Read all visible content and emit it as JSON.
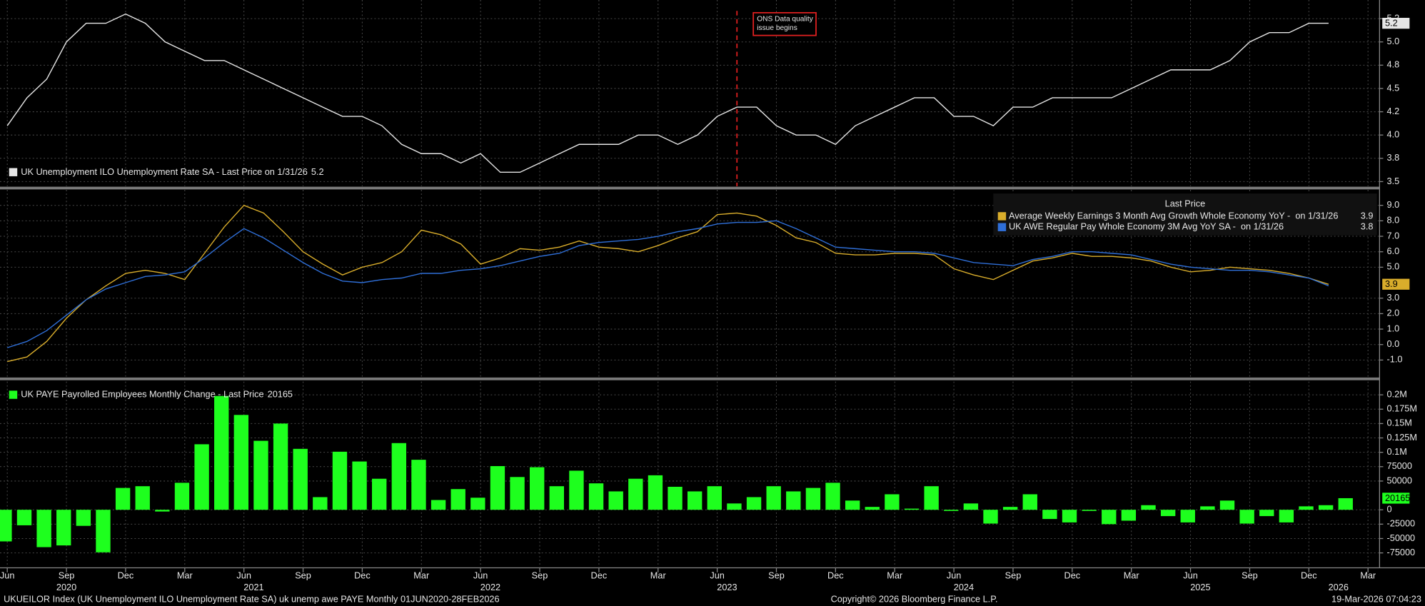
{
  "chart_data": [
    {
      "type": "line",
      "x": [
        "2020-06",
        "2020-07",
        "2020-08",
        "2020-09",
        "2020-10",
        "2020-11",
        "2020-12",
        "2021-01",
        "2021-02",
        "2021-03",
        "2021-04",
        "2021-05",
        "2021-06",
        "2021-07",
        "2021-08",
        "2021-09",
        "2021-10",
        "2021-11",
        "2021-12",
        "2022-01",
        "2022-02",
        "2022-03",
        "2022-04",
        "2022-05",
        "2022-06",
        "2022-07",
        "2022-08",
        "2022-09",
        "2022-10",
        "2022-11",
        "2022-12",
        "2023-01",
        "2023-02",
        "2023-03",
        "2023-04",
        "2023-05",
        "2023-06",
        "2023-07",
        "2023-08",
        "2023-09",
        "2023-10",
        "2023-11",
        "2023-12",
        "2024-01",
        "2024-02",
        "2024-03",
        "2024-04",
        "2024-05",
        "2024-06",
        "2024-07",
        "2024-08",
        "2024-09",
        "2024-10",
        "2024-11",
        "2024-12",
        "2025-01",
        "2025-02",
        "2025-03",
        "2025-04",
        "2025-05",
        "2025-06",
        "2025-07",
        "2025-08",
        "2025-09",
        "2025-10",
        "2025-11",
        "2025-12",
        "2026-01",
        "2026-02"
      ],
      "series": [
        {
          "name": "UK Unemployment ILO Unemployment Rate SA - Last Price on 1/31/26",
          "color": "#e6e6e6",
          "values": [
            4.1,
            4.4,
            4.6,
            5.0,
            5.2,
            5.2,
            5.3,
            5.2,
            5.0,
            4.9,
            4.8,
            4.8,
            4.7,
            4.6,
            4.5,
            4.4,
            4.3,
            4.2,
            4.2,
            4.1,
            3.9,
            3.8,
            3.8,
            3.7,
            3.8,
            3.6,
            3.6,
            3.7,
            3.8,
            3.9,
            3.9,
            3.9,
            4.0,
            4.0,
            3.9,
            4.0,
            4.2,
            4.3,
            4.3,
            4.1,
            4.0,
            4.0,
            3.9,
            4.1,
            4.2,
            4.3,
            4.4,
            4.4,
            4.2,
            4.2,
            4.1,
            4.3,
            4.3,
            4.4,
            4.4,
            4.4,
            4.4,
            4.5,
            4.6,
            4.7,
            4.7,
            4.7,
            4.8,
            5.0,
            5.1,
            5.1,
            5.2,
            5.2,
            null
          ]
        }
      ],
      "ylim": [
        3.45,
        5.45
      ],
      "yticks": [
        {
          "value": 3.5,
          "label": "3.5"
        },
        {
          "value": 3.75,
          "label": "3.8"
        },
        {
          "value": 4.0,
          "label": "4.0"
        },
        {
          "value": 4.25,
          "label": "4.2"
        },
        {
          "value": 4.5,
          "label": "4.5"
        },
        {
          "value": 4.75,
          "label": "4.8"
        },
        {
          "value": 5.0,
          "label": "5.0"
        },
        {
          "value": 5.25,
          "label": "5.2"
        }
      ],
      "grid": true,
      "legend": "lower left",
      "annotation": {
        "lines": [
          "ONS Data quality",
          "issue begins"
        ],
        "x": "2023-07",
        "color": "#e02020"
      }
    },
    {
      "type": "line",
      "x": [
        "2020-06",
        "2020-07",
        "2020-08",
        "2020-09",
        "2020-10",
        "2020-11",
        "2020-12",
        "2021-01",
        "2021-02",
        "2021-03",
        "2021-04",
        "2021-05",
        "2021-06",
        "2021-07",
        "2021-08",
        "2021-09",
        "2021-10",
        "2021-11",
        "2021-12",
        "2022-01",
        "2022-02",
        "2022-03",
        "2022-04",
        "2022-05",
        "2022-06",
        "2022-07",
        "2022-08",
        "2022-09",
        "2022-10",
        "2022-11",
        "2022-12",
        "2023-01",
        "2023-02",
        "2023-03",
        "2023-04",
        "2023-05",
        "2023-06",
        "2023-07",
        "2023-08",
        "2023-09",
        "2023-10",
        "2023-11",
        "2023-12",
        "2024-01",
        "2024-02",
        "2024-03",
        "2024-04",
        "2024-05",
        "2024-06",
        "2024-07",
        "2024-08",
        "2024-09",
        "2024-10",
        "2024-11",
        "2024-12",
        "2025-01",
        "2025-02",
        "2025-03",
        "2025-04",
        "2025-05",
        "2025-06",
        "2025-07",
        "2025-08",
        "2025-09",
        "2025-10",
        "2025-11",
        "2025-12",
        "2026-01",
        "2026-02"
      ],
      "legend_title": "Last Price",
      "series": [
        {
          "name": "Average Weekly Earnings 3 Month Avg Growth Whole Economy YoY -  on 1/31/26",
          "color": "#d9ad2b",
          "values": [
            -1.1,
            -0.8,
            0.2,
            1.7,
            2.9,
            3.8,
            4.6,
            4.8,
            4.6,
            4.2,
            5.9,
            7.6,
            9.0,
            8.5,
            7.3,
            6.0,
            5.2,
            4.5,
            5.0,
            5.3,
            6.0,
            7.4,
            7.1,
            6.5,
            5.2,
            5.6,
            6.2,
            6.1,
            6.3,
            6.7,
            6.3,
            6.2,
            6.0,
            6.4,
            6.9,
            7.3,
            8.4,
            8.5,
            8.3,
            7.7,
            6.9,
            6.6,
            5.9,
            5.8,
            5.8,
            5.9,
            5.9,
            5.8,
            4.9,
            4.5,
            4.2,
            4.8,
            5.4,
            5.6,
            5.9,
            5.7,
            5.7,
            5.6,
            5.4,
            5.0,
            4.7,
            4.8,
            5.0,
            4.9,
            4.8,
            4.6,
            4.3,
            3.9,
            null
          ]
        },
        {
          "name": "UK AWE Regular Pay Whole Economy 3M Avg YoY SA -  on 1/31/26",
          "color": "#2f6fd8",
          "values": [
            -0.2,
            0.2,
            0.9,
            1.9,
            2.9,
            3.6,
            4.0,
            4.4,
            4.5,
            4.7,
            5.6,
            6.6,
            7.5,
            6.9,
            6.1,
            5.3,
            4.6,
            4.1,
            4.0,
            4.2,
            4.3,
            4.6,
            4.6,
            4.8,
            4.9,
            5.1,
            5.4,
            5.7,
            5.9,
            6.4,
            6.6,
            6.7,
            6.8,
            7.0,
            7.3,
            7.5,
            7.8,
            7.9,
            7.9,
            8.0,
            7.5,
            6.9,
            6.3,
            6.2,
            6.1,
            6.0,
            6.0,
            5.9,
            5.6,
            5.3,
            5.2,
            5.1,
            5.5,
            5.7,
            6.0,
            6.0,
            5.9,
            5.8,
            5.5,
            5.2,
            5.0,
            4.9,
            4.8,
            4.8,
            4.7,
            4.5,
            4.3,
            3.8,
            null
          ]
        }
      ],
      "ylim": [
        -2.1,
        10
      ],
      "yticks": [
        {
          "value": -1,
          "label": "-1.0"
        },
        {
          "value": 0,
          "label": "0.0"
        },
        {
          "value": 1,
          "label": "1.0"
        },
        {
          "value": 2,
          "label": "2.0"
        },
        {
          "value": 3,
          "label": "3.0"
        },
        {
          "value": 5,
          "label": "5.0"
        },
        {
          "value": 6,
          "label": "6.0"
        },
        {
          "value": 7,
          "label": "7.0"
        },
        {
          "value": 8,
          "label": "8.0"
        },
        {
          "value": 9,
          "label": "9.0"
        }
      ],
      "grid": true,
      "legend": "upper right"
    },
    {
      "type": "bar",
      "x": [
        "2020-06",
        "2020-07",
        "2020-08",
        "2020-09",
        "2020-10",
        "2020-11",
        "2020-12",
        "2021-01",
        "2021-02",
        "2021-03",
        "2021-04",
        "2021-05",
        "2021-06",
        "2021-07",
        "2021-08",
        "2021-09",
        "2021-10",
        "2021-11",
        "2021-12",
        "2022-01",
        "2022-02",
        "2022-03",
        "2022-04",
        "2022-05",
        "2022-06",
        "2022-07",
        "2022-08",
        "2022-09",
        "2022-10",
        "2022-11",
        "2022-12",
        "2023-01",
        "2023-02",
        "2023-03",
        "2023-04",
        "2023-05",
        "2023-06",
        "2023-07",
        "2023-08",
        "2023-09",
        "2023-10",
        "2023-11",
        "2023-12",
        "2024-01",
        "2024-02",
        "2024-03",
        "2024-04",
        "2024-05",
        "2024-06",
        "2024-07",
        "2024-08",
        "2024-09",
        "2024-10",
        "2024-11",
        "2024-12",
        "2025-01",
        "2025-02",
        "2025-03",
        "2025-04",
        "2025-05",
        "2025-06",
        "2025-07",
        "2025-08",
        "2025-09",
        "2025-10",
        "2025-11",
        "2025-12",
        "2026-01",
        "2026-02"
      ],
      "series": [
        {
          "name": "UK PAYE Payrolled Employees Monthly Change - Last Price",
          "color": "#1eff1e",
          "values": [
            -55000,
            -27000,
            -65000,
            -62000,
            -28000,
            -74000,
            38000,
            41000,
            -3000,
            47000,
            114000,
            198000,
            165000,
            120000,
            150000,
            106000,
            22000,
            101000,
            84000,
            54000,
            116000,
            87000,
            17000,
            36000,
            21000,
            76000,
            57000,
            74000,
            41000,
            68000,
            46000,
            32000,
            54000,
            60000,
            40000,
            32000,
            41000,
            11000,
            22000,
            41000,
            32000,
            38000,
            47000,
            16000,
            5000,
            27000,
            2000,
            41000,
            -2000,
            11000,
            -24000,
            5000,
            27000,
            -16000,
            -22000,
            -2000,
            -25000,
            -19000,
            8000,
            -11000,
            -22000,
            6000,
            16000,
            -24000,
            -11000,
            -22000,
            6000,
            8000,
            20165
          ]
        }
      ],
      "ylim": [
        -101000,
        223000
      ],
      "yticks": [
        {
          "value": -75000,
          "label": "-75000"
        },
        -50000,
        -25000,
        0,
        50000,
        75000,
        {
          "value": 100000,
          "label": "0.1M"
        },
        {
          "value": 125000,
          "label": "0.125M"
        },
        {
          "value": 150000,
          "label": "0.15M"
        },
        {
          "value": 175000,
          "label": "0.175M"
        },
        {
          "value": 200000,
          "label": "0.2M"
        }
      ],
      "grid": true,
      "legend": "upper left",
      "xticks": [
        {
          "value": "2020-06",
          "label": "Jun"
        },
        {
          "value": "2020-09",
          "label": "Sep"
        },
        {
          "value": "2020-12",
          "label": "Dec"
        },
        {
          "value": "2021-03",
          "label": "Mar"
        },
        {
          "value": "2021-06",
          "label": "Jun"
        },
        {
          "value": "2021-09",
          "label": "Sep"
        },
        {
          "value": "2021-12",
          "label": "Dec"
        },
        {
          "value": "2022-03",
          "label": "Mar"
        },
        {
          "value": "2022-06",
          "label": "Jun"
        },
        {
          "value": "2022-09",
          "label": "Sep"
        },
        {
          "value": "2022-12",
          "label": "Dec"
        },
        {
          "value": "2023-03",
          "label": "Mar"
        },
        {
          "value": "2023-06",
          "label": "Jun"
        },
        {
          "value": "2023-09",
          "label": "Sep"
        },
        {
          "value": "2023-12",
          "label": "Dec"
        },
        {
          "value": "2024-03",
          "label": "Mar"
        },
        {
          "value": "2024-06",
          "label": "Jun"
        },
        {
          "value": "2024-09",
          "label": "Sep"
        },
        {
          "value": "2024-12",
          "label": "Dec"
        },
        {
          "value": "2025-03",
          "label": "Mar"
        },
        {
          "value": "2025-06",
          "label": "Jun"
        },
        {
          "value": "2025-09",
          "label": "Sep"
        },
        {
          "value": "2025-12",
          "label": "Dec"
        },
        {
          "value": "2026-03",
          "label": "Mar"
        }
      ],
      "xyears": [
        2020,
        2021,
        2022,
        2023,
        2024,
        2025,
        2026
      ]
    }
  ],
  "footer": {
    "source": "UKUEILOR Index (UK Unemployment ILO Unemployment Rate SA) uk unemp awe PAYE Monthly 01JUN2020-28FEB2026",
    "copyright": "Copyright© 2026 Bloomberg Finance L.P.",
    "timestamp": "19-Mar-2026 07:04:23"
  }
}
